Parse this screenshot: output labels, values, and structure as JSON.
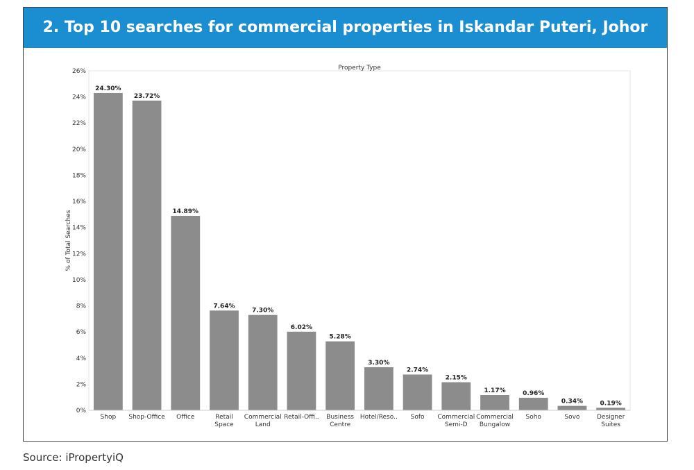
{
  "header": {
    "title": "2. Top 10 searches for commercial properties in Iskandar Puteri, Johor"
  },
  "source": "Source: iPropertyiQ",
  "colors": {
    "banner": "#1a8ed1",
    "bar": "#8c8c8c",
    "text": "#333333"
  },
  "chart_data": {
    "type": "bar",
    "title": "Property Type",
    "xlabel": "",
    "ylabel": "% of Total Searches",
    "ylim": [
      0,
      26
    ],
    "yticks": [
      "0%",
      "2%",
      "4%",
      "6%",
      "8%",
      "10%",
      "12%",
      "14%",
      "16%",
      "18%",
      "20%",
      "22%",
      "24%",
      "26%"
    ],
    "grid": false,
    "categories": [
      [
        "Shop"
      ],
      [
        "Shop-Office"
      ],
      [
        "Office"
      ],
      [
        "Retail",
        "Space"
      ],
      [
        "Commercial",
        "Land"
      ],
      [
        "Retail-Offi.."
      ],
      [
        "Business",
        "Centre"
      ],
      [
        "Hotel/Reso.."
      ],
      [
        "Sofo"
      ],
      [
        "Commercial",
        "Semi-D"
      ],
      [
        "Commercial",
        "Bungalow"
      ],
      [
        "Soho"
      ],
      [
        "Sovo"
      ],
      [
        "Designer",
        "Suites"
      ]
    ],
    "values": [
      24.3,
      23.72,
      14.89,
      7.64,
      7.3,
      6.02,
      5.28,
      3.3,
      2.74,
      2.15,
      1.17,
      0.96,
      0.34,
      0.19
    ],
    "data_labels": [
      "24.30%",
      "23.72%",
      "14.89%",
      "7.64%",
      "7.30%",
      "6.02%",
      "5.28%",
      "3.30%",
      "2.74%",
      "2.15%",
      "1.17%",
      "0.96%",
      "0.34%",
      "0.19%"
    ]
  }
}
